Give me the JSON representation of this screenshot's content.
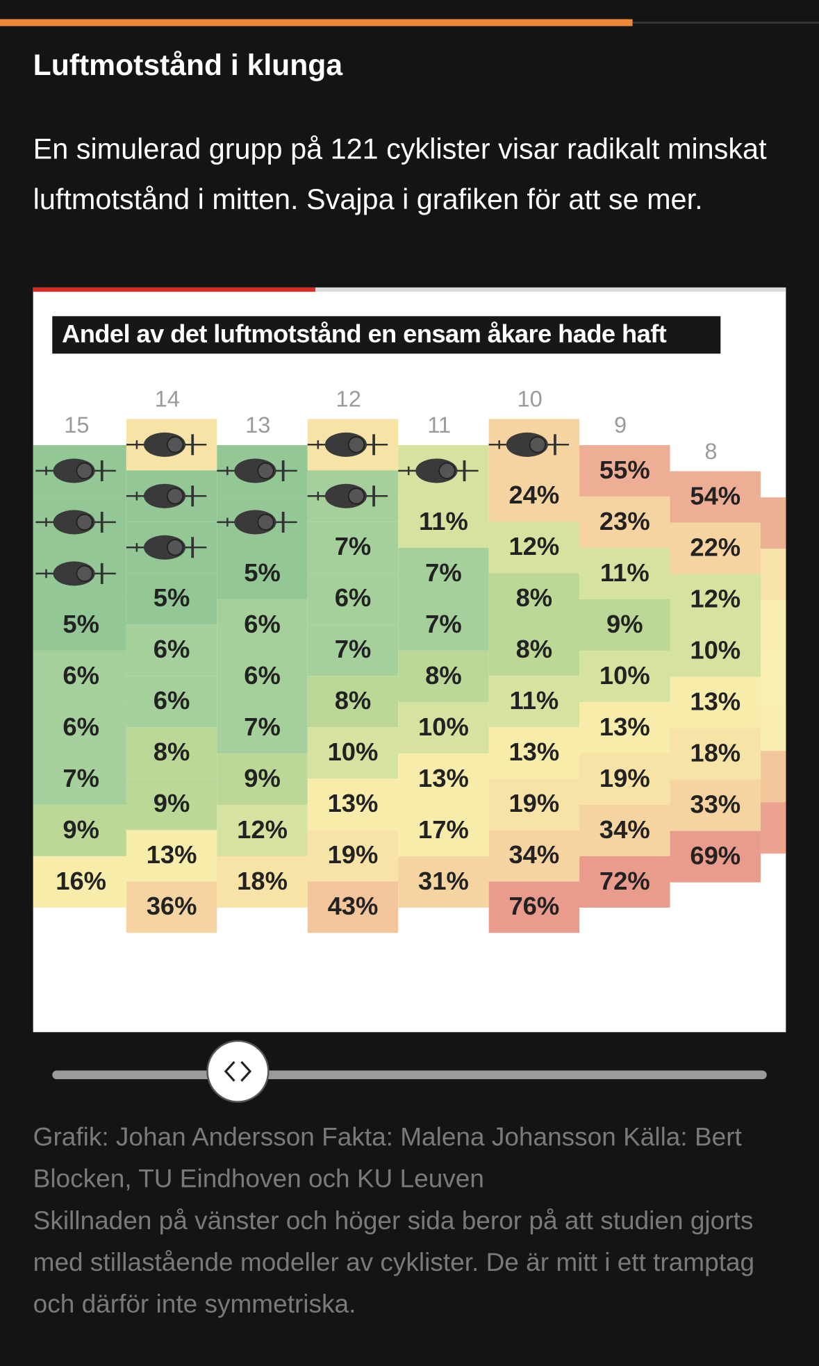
{
  "header": {
    "title": "Luftmotstånd i klunga",
    "description": "En simulerad grupp på 121 cyklister visar radikalt minskat luftmotstånd i mitten. Svajpa i grafiken för att se mer."
  },
  "graphic": {
    "title": "Andel av det luftmotstånd en ensam åkare hade haft",
    "columns": [
      {
        "label": "15",
        "cells": [
          null,
          null,
          null,
          "5%",
          "6%",
          "6%",
          "7%",
          "9%",
          "16%"
        ]
      },
      {
        "label": "14",
        "cells": [
          null,
          null,
          null,
          "5%",
          "6%",
          "6%",
          "8%",
          "9%",
          "13%",
          "36%"
        ]
      },
      {
        "label": "13",
        "cells": [
          null,
          null,
          "5%",
          "6%",
          "6%",
          "7%",
          "9%",
          "12%",
          "18%"
        ]
      },
      {
        "label": "12",
        "cells": [
          null,
          null,
          "7%",
          "6%",
          "7%",
          "8%",
          "10%",
          "13%",
          "19%",
          "43%"
        ]
      },
      {
        "label": "11",
        "cells": [
          null,
          "11%",
          "7%",
          "7%",
          "8%",
          "10%",
          "13%",
          "17%",
          "31%"
        ]
      },
      {
        "label": "10",
        "cells": [
          null,
          "24%",
          "12%",
          "8%",
          "8%",
          "11%",
          "13%",
          "19%",
          "34%",
          "76%"
        ]
      },
      {
        "label": "9",
        "cells": [
          "55%",
          "23%",
          "11%",
          "9%",
          "10%",
          "13%",
          "19%",
          "34%",
          "72%"
        ]
      },
      {
        "label": "8",
        "cells": [
          "54%",
          "22%",
          "12%",
          "10%",
          "13%",
          "18%",
          "33%",
          "69%"
        ]
      }
    ]
  },
  "footer": {
    "credits": "Grafik: Johan Andersson Fakta: Malena Johansson Källa: Bert Blocken, TU Eindhoven och KU Leuven",
    "note": "Skillnaden på vänster och höger sida beror på att studien gjorts med stillastående modeller av cyklister. De är mitt i ett tramptag och därför inte symmetriska."
  }
}
